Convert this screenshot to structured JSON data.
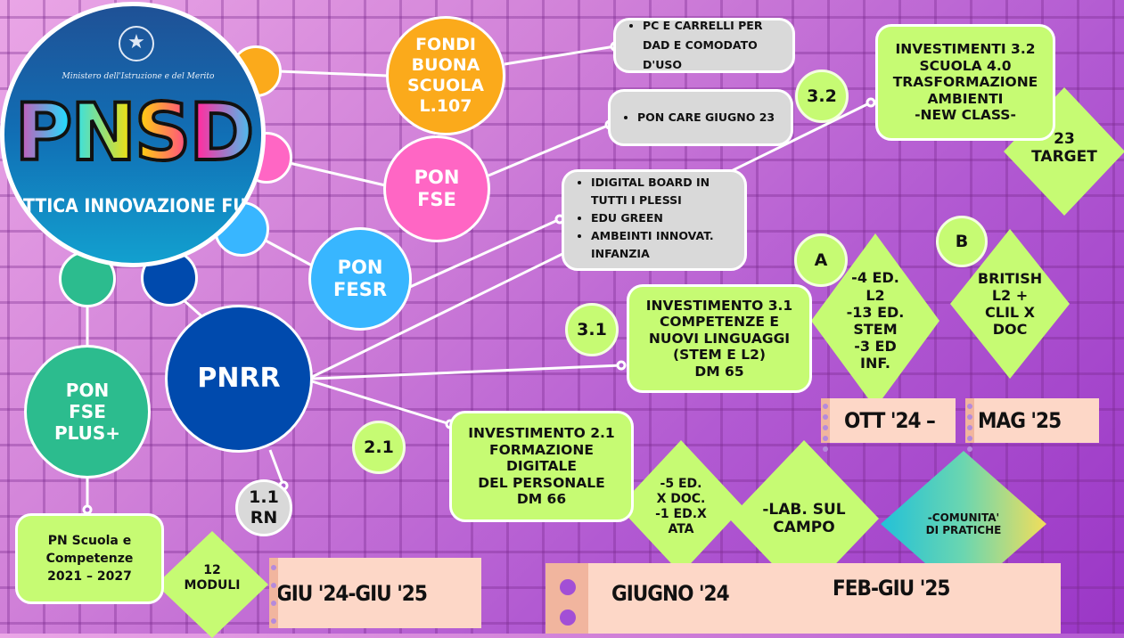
{
  "logo": {
    "ministry": "Ministero dell'Istruzione e del Merito",
    "title": "PNSD",
    "subtitle": "ATTICA INNOVAZIONE FUTU"
  },
  "nodes": {
    "fondi": "FONDI\nBUONA\nSCUOLA\nL.107",
    "pon_fse": "PON\nFSE",
    "pon_fesr": "PON\nFESR",
    "pnrr": "PNRR",
    "pon_fse_plus": "PON\nFSE\nPLUS+",
    "rn": "1.1\nRN",
    "n21": "2.1",
    "n31": "3.1",
    "n32": "3.2",
    "a": "A",
    "b": "B"
  },
  "gray_boxes": {
    "fondi_items": [
      "PC E CARRELLI PER DAD E COMODATO D'USO"
    ],
    "fse_items": [
      "PON CARE GIUGNO 23"
    ],
    "fesr_items": [
      "IDIGITAL BOARD IN TUTTI I PLESSI",
      "EDU GREEN",
      "AMBEINTI INNOVAT. INFANZIA"
    ]
  },
  "green_boxes": {
    "inv32": "INVESTIMENTI 3.2\nSCUOLA 4.0\nTRASFORMAZIONE\nAMBIENTI\n-NEW CLASS-",
    "inv31": "INVESTIMENTO 3.1\nCOMPETENZE E\nNUOVI LINGUAGGI\n(STEM E L2)\nDM 65",
    "inv21": "INVESTIMENTO 2.1\nFORMAZIONE\nDIGITALE\nDEL PERSONALE\nDM 66",
    "pn_scuola": "PN Scuola e\nCompetenze\n2021 – 2027"
  },
  "diamonds": {
    "target": "23\nTARGET",
    "a_detail": "-4 ED.\nL2\n-13  ED.\nSTEM\n-3 ED\nINF.",
    "b_detail": "BRITISH\nL2 +\nCLIL X\nDOC",
    "moduli": "12\nMODULI",
    "ed_doc": "-5 ED.\nX DOC.\n-1 ED.X\nATA",
    "lab": "-LAB. SUL\nCAMPO",
    "comunita": "-COMUNITA'\nDI PRATICHE"
  },
  "dates": {
    "ott": "OTT '24 –",
    "mag": "MAG '25",
    "giu_giu": "GIU '24-GIU '25",
    "giugno": "GIUGNO '24",
    "feb_giu": "FEB-GIU '25"
  },
  "colors": {
    "orange": "#fbaa1b",
    "pink": "#ff66c4",
    "light_blue": "#38b6ff",
    "dark_blue": "#004aad",
    "teal": "#2cbc8e",
    "green": "#c6fb73",
    "gray": "#d9d9d9",
    "peach": "#fdd7c7"
  }
}
